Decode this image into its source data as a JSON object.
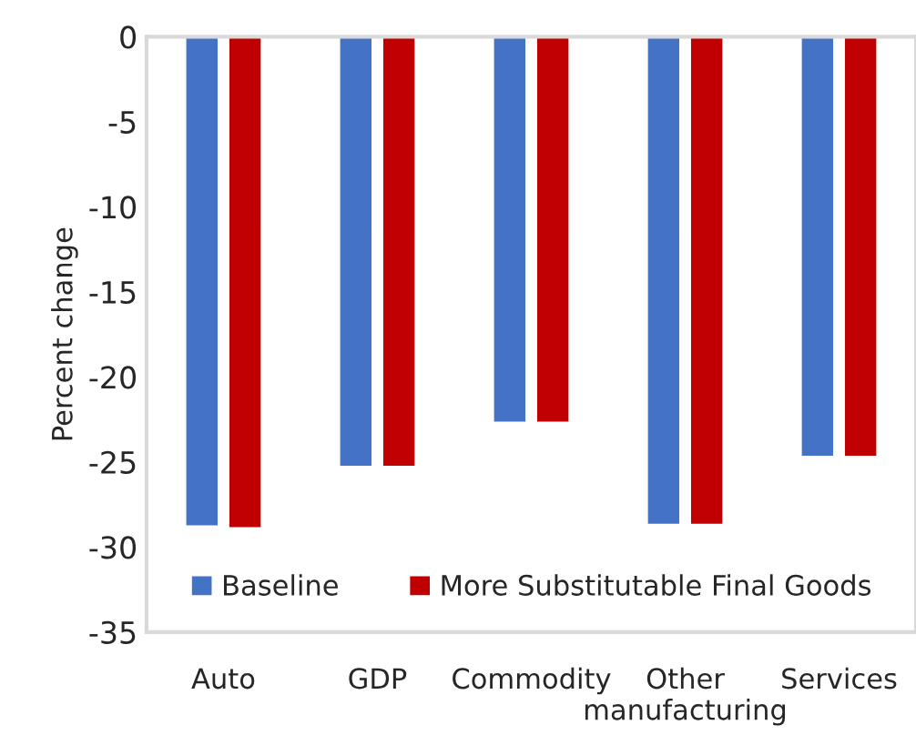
{
  "chart_data": {
    "type": "bar",
    "ylabel": "Percent change",
    "categories": [
      "Auto",
      "GDP",
      "Commodity",
      "Other\nmanufacturing",
      "Services"
    ],
    "series": [
      {
        "name": "Baseline",
        "color": "#4472c4",
        "values": [
          -28.8,
          -25.3,
          -22.7,
          -28.7,
          -24.7
        ]
      },
      {
        "name": "More Substitutable Final Goods",
        "color": "#c00000",
        "values": [
          -28.9,
          -25.3,
          -22.7,
          -28.7,
          -24.7
        ]
      }
    ],
    "ylim": [
      -35,
      0
    ],
    "yticks": [
      0,
      -5,
      -10,
      -15,
      -20,
      -25,
      -30,
      -35
    ],
    "grid": false,
    "legend": "bottom"
  }
}
